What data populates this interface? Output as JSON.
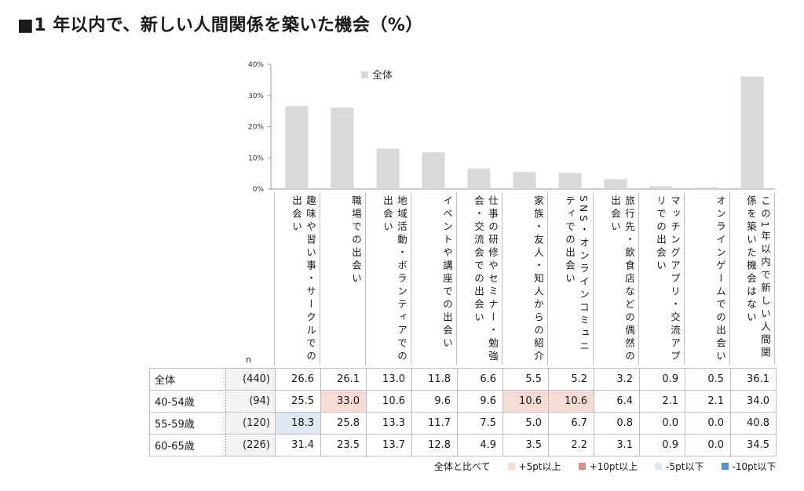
{
  "title": "■1 年以内で、新しい人間関係を築いた機会（%）",
  "chart_data": {
    "type": "bar",
    "title": "■1 年以内で、新しい人間関係を築いた機会（%）",
    "series_name": "全体",
    "ylim": [
      0,
      40
    ],
    "yticks": [
      "0%",
      "10%",
      "20%",
      "30%",
      "40%"
    ],
    "grid": false,
    "legend_position": "top-center",
    "categories": [
      "趣味や習い事・サークルでの出会い",
      "職場での出会い",
      "地域活動・ボランティアでの出会い",
      "イベントや講座での出会い",
      "仕事の研修やセミナー・勉強会・交流会での出会い",
      "家族・友人・知人からの紹介",
      "SNS・オンラインコミュニティでの出会い",
      "旅行先・飲食店などの偶然の出会い",
      "マッチングアプリ・交流アプリでの出会い",
      "オンラインゲームでの出会い",
      "この1年以内で新しい人間関係を築いた機会はない"
    ],
    "values": [
      26.6,
      26.1,
      13.0,
      11.8,
      6.6,
      5.5,
      5.2,
      3.2,
      0.9,
      0.5,
      36.1
    ],
    "bar_color": "#d9d9d9"
  },
  "table": {
    "n_header": "n",
    "rows": [
      {
        "label": "全体",
        "n": "(440)",
        "values": [
          "26.6",
          "26.1",
          "13.0",
          "11.8",
          "6.6",
          "5.5",
          "5.2",
          "3.2",
          "0.9",
          "0.5",
          "36.1"
        ],
        "hl": [
          "",
          "",
          "",
          "",
          "",
          "",
          "",
          "",
          "",
          "",
          ""
        ]
      },
      {
        "label": "40-54歳",
        "n": "(94)",
        "values": [
          "25.5",
          "33.0",
          "10.6",
          "9.6",
          "9.6",
          "10.6",
          "10.6",
          "6.4",
          "2.1",
          "2.1",
          "34.0"
        ],
        "hl": [
          "",
          "hi",
          "",
          "",
          "",
          "hi",
          "hi",
          "",
          "",
          "",
          ""
        ]
      },
      {
        "label": "55-59歳",
        "n": "(120)",
        "values": [
          "18.3",
          "25.8",
          "13.3",
          "11.7",
          "7.5",
          "5.0",
          "6.7",
          "0.8",
          "0.0",
          "0.0",
          "40.8"
        ],
        "hl": [
          "lo",
          "",
          "",
          "",
          "",
          "",
          "",
          "",
          "",
          "",
          ""
        ]
      },
      {
        "label": "60-65歳",
        "n": "(226)",
        "values": [
          "31.4",
          "23.5",
          "13.7",
          "12.8",
          "4.9",
          "3.5",
          "2.2",
          "3.1",
          "0.9",
          "0.0",
          "34.5"
        ],
        "hl": [
          "",
          "",
          "",
          "",
          "",
          "",
          "",
          "",
          "",
          "",
          ""
        ]
      }
    ]
  },
  "legend": {
    "prefix": "全体と比べて",
    "items": [
      {
        "label": "+5pt以上",
        "color": "#f7dcd6"
      },
      {
        "label": "+10pt以上",
        "color": "#d98e86"
      },
      {
        "label": "-5pt以下",
        "color": "#dde8f3"
      },
      {
        "label": "-10pt以下",
        "color": "#5b8fd1"
      }
    ]
  }
}
